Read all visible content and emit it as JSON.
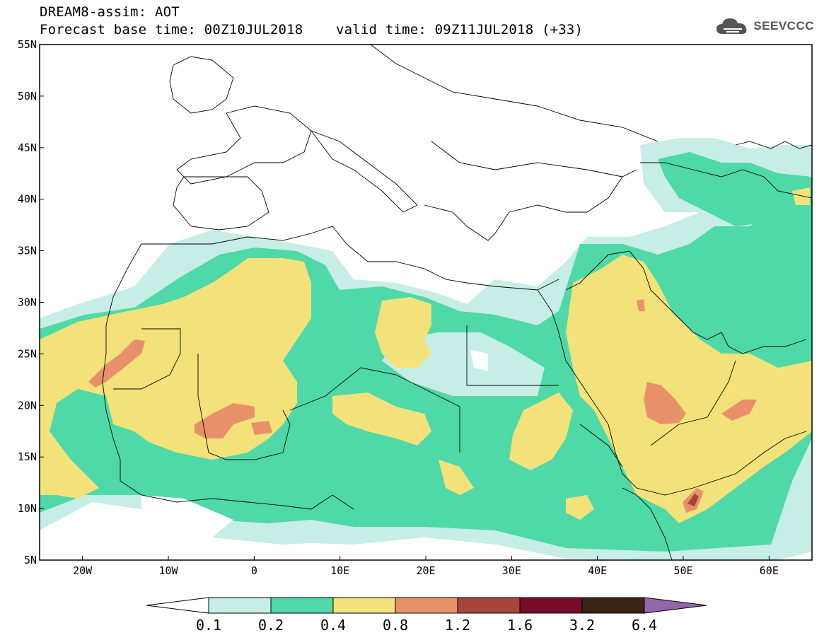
{
  "header": {
    "title_line1": "DREAM8-assim: AOT",
    "title_line2": "Forecast base time: 00Z10JUL2018    valid time: 09Z11JUL2018 (+33)"
  },
  "logo": {
    "text": "SEEVCCC",
    "icon": "cloud-icon"
  },
  "map": {
    "lon_range": [
      -25,
      65
    ],
    "lat_range": [
      5,
      55
    ],
    "lat_ticks": [
      "55N",
      "50N",
      "45N",
      "40N",
      "35N",
      "30N",
      "25N",
      "20N",
      "15N",
      "10N",
      "5N"
    ],
    "lon_ticks": [
      "20W",
      "10W",
      "0",
      "10E",
      "20E",
      "30E",
      "40E",
      "50E",
      "60E"
    ]
  },
  "colorbar": {
    "labels": [
      "0.1",
      "0.2",
      "0.4",
      "0.8",
      "1.2",
      "1.6",
      "3.2",
      "6.4"
    ],
    "colors": [
      "#ffffff",
      "#c6eee6",
      "#4fd8a8",
      "#f3e27a",
      "#e8906a",
      "#a5463a",
      "#7a0a2a",
      "#3a2414",
      "#9466a8"
    ]
  }
}
